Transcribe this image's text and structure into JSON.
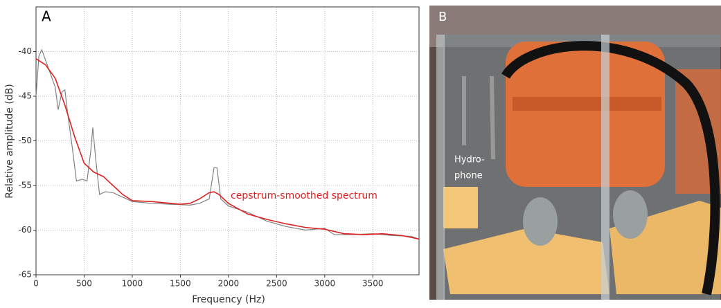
{
  "chart_data": {
    "type": "line",
    "panel_label": "A",
    "x_label": "Frequency (Hz)",
    "y_label": "Relative amplitude (dB)",
    "xlim": [
      0,
      3980
    ],
    "ylim": [
      -65,
      -35
    ],
    "xticks": [
      0,
      500,
      1000,
      1500,
      2000,
      2500,
      3000,
      3500
    ],
    "yticks": [
      -40,
      -45,
      -50,
      -55,
      -60,
      -65
    ],
    "grid": true,
    "series": [
      {
        "color": "#808080",
        "x": [
          0,
          30,
          60,
          100,
          150,
          200,
          230,
          270,
          300,
          330,
          380,
          420,
          480,
          530,
          570,
          590,
          620,
          660,
          720,
          800,
          900,
          1000,
          1200,
          1400,
          1600,
          1700,
          1800,
          1850,
          1880,
          1920,
          2000,
          2200,
          2400,
          2600,
          2800,
          3000,
          3100,
          3300,
          3500,
          3700,
          3900,
          3980
        ],
        "values": [
          -45,
          -40.5,
          -39.8,
          -41,
          -42.5,
          -44,
          -46.5,
          -44.5,
          -44.3,
          -47,
          -51,
          -54.5,
          -54.3,
          -54.5,
          -51,
          -48.5,
          -52,
          -56,
          -55.7,
          -55.8,
          -56.3,
          -56.8,
          -57,
          -57.1,
          -57.2,
          -57,
          -56.5,
          -53,
          -53,
          -56.5,
          -57.3,
          -58,
          -59,
          -59.6,
          -60,
          -59.8,
          -60.5,
          -60.5,
          -60.4,
          -60.6,
          -60.7,
          -61
        ]
      },
      {
        "name": "cepstrum-smoothed  spectrum",
        "color": "#e02020",
        "x": [
          0,
          100,
          200,
          300,
          400,
          500,
          600,
          700,
          800,
          900,
          1000,
          1200,
          1400,
          1500,
          1600,
          1700,
          1800,
          1850,
          1900,
          2000,
          2200,
          2400,
          2600,
          2800,
          3000,
          3200,
          3400,
          3600,
          3800,
          3980
        ],
        "values": [
          -40.8,
          -41.5,
          -43,
          -46,
          -49.5,
          -52.5,
          -53.5,
          -54,
          -55,
          -56,
          -56.7,
          -56.8,
          -57,
          -57.1,
          -57,
          -56.5,
          -55.8,
          -55.7,
          -56,
          -57,
          -58.2,
          -58.8,
          -59.3,
          -59.7,
          -59.9,
          -60.4,
          -60.5,
          -60.4,
          -60.6,
          -61
        ]
      }
    ]
  },
  "photo": {
    "panel_label": "B",
    "annotation": [
      "Hydro-",
      "phone"
    ]
  }
}
